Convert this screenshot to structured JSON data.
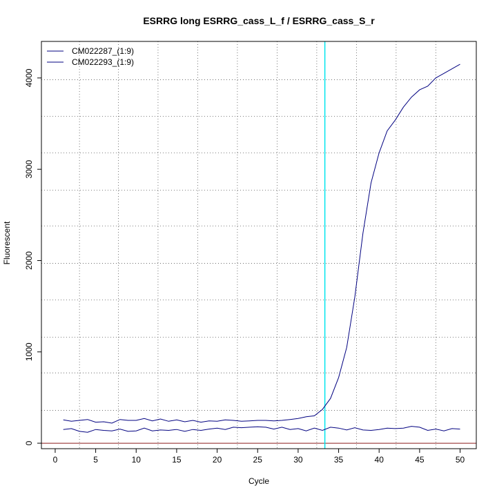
{
  "chart_data": {
    "type": "line",
    "title": "ESRRG long ESRRG_cass_L_f / ESRRG_cass_S_r",
    "xlabel": "Cycle",
    "ylabel": "Fluorescent",
    "xlim": [
      -1.7,
      52
    ],
    "ylim": [
      -60,
      4400
    ],
    "x_ticks": [
      0,
      5,
      10,
      15,
      20,
      25,
      30,
      35,
      40,
      45,
      50
    ],
    "x_tick_labels": [
      "0",
      "5",
      "10",
      "15",
      "20",
      "25",
      "30",
      "35",
      "40",
      "45",
      "50"
    ],
    "y_ticks": [
      0,
      1000,
      2000,
      3000,
      4000
    ],
    "y_tick_labels": [
      "0",
      "1000",
      "2000",
      "3000",
      "4000"
    ],
    "grid": true,
    "grid_style": "dotted",
    "grid_x": [
      3,
      7.8,
      12.7,
      17.6,
      22.5,
      27.4,
      32.3,
      37.2,
      42.1,
      47
    ],
    "grid_y": [
      360,
      770,
      1160,
      1570,
      1970,
      2380,
      2770,
      3180,
      3580,
      3980
    ],
    "threshold_line": {
      "x": 33.3,
      "color": "#00e5ee"
    },
    "baseline": {
      "y": 0,
      "color": "#8b1a1a"
    },
    "legend_position": "top-left",
    "series": [
      {
        "name": "CM022287_(1:9)",
        "color": "#000080",
        "x": [
          1,
          2,
          3,
          4,
          5,
          6,
          7,
          8,
          9,
          10,
          11,
          12,
          13,
          14,
          15,
          16,
          17,
          18,
          19,
          20,
          21,
          22,
          23,
          24,
          25,
          26,
          27,
          28,
          29,
          30,
          31,
          32,
          33,
          34,
          35,
          36,
          37,
          38,
          39,
          40,
          41,
          42,
          43,
          44,
          45,
          46,
          47,
          48,
          49,
          50
        ],
        "values": [
          255,
          240,
          250,
          260,
          230,
          235,
          220,
          260,
          250,
          250,
          270,
          245,
          265,
          240,
          255,
          235,
          250,
          230,
          245,
          240,
          255,
          250,
          240,
          245,
          250,
          250,
          245,
          250,
          260,
          270,
          290,
          300,
          370,
          490,
          720,
          1050,
          1600,
          2300,
          2850,
          3180,
          3420,
          3540,
          3680,
          3790,
          3870,
          3910,
          4000,
          4050,
          4100,
          4150
        ]
      },
      {
        "name": "CM022293_(1:9)",
        "color": "#000080",
        "x": [
          1,
          2,
          3,
          4,
          5,
          6,
          7,
          8,
          9,
          10,
          11,
          12,
          13,
          14,
          15,
          16,
          17,
          18,
          19,
          20,
          21,
          22,
          23,
          24,
          25,
          26,
          27,
          28,
          29,
          30,
          31,
          32,
          33,
          34,
          35,
          36,
          37,
          38,
          39,
          40,
          41,
          42,
          43,
          44,
          45,
          46,
          47,
          48,
          49,
          50
        ],
        "values": [
          150,
          160,
          130,
          120,
          150,
          140,
          135,
          155,
          130,
          135,
          165,
          135,
          145,
          140,
          150,
          130,
          150,
          140,
          155,
          165,
          150,
          175,
          170,
          175,
          180,
          175,
          155,
          175,
          150,
          160,
          135,
          165,
          140,
          175,
          165,
          145,
          170,
          145,
          140,
          150,
          165,
          160,
          165,
          185,
          175,
          140,
          155,
          135,
          160,
          155
        ]
      }
    ]
  }
}
